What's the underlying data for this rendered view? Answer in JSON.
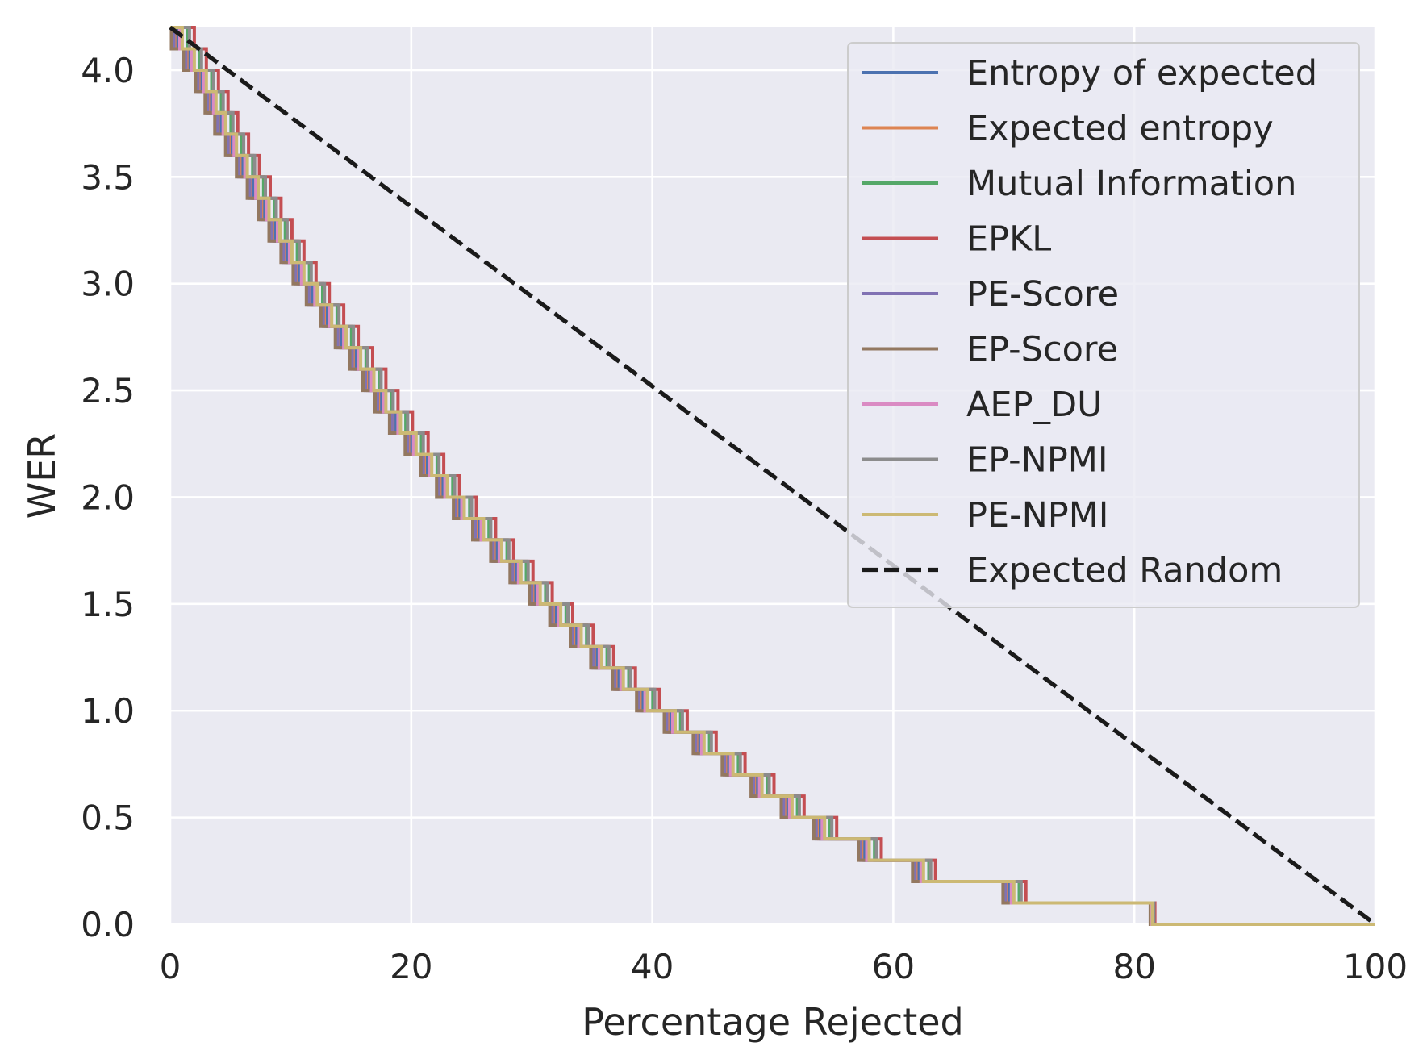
{
  "chart_data": {
    "type": "line",
    "title": "",
    "xlabel": "Percentage Rejected",
    "ylabel": "WER",
    "xlim": [
      0,
      100
    ],
    "ylim": [
      0,
      4.2
    ],
    "xticks": [
      "0",
      "20",
      "40",
      "60",
      "80",
      "100"
    ],
    "yticks": [
      "0.0",
      "0.5",
      "1.0",
      "1.5",
      "2.0",
      "2.5",
      "3.0",
      "3.5",
      "4.0"
    ],
    "grid": true,
    "legend_position": "top-right",
    "series": [
      {
        "name": "Entropy of expected",
        "color": "#4c72b0",
        "style": "step",
        "offset": -0.35
      },
      {
        "name": "Expected entropy",
        "color": "#dd8452",
        "style": "step",
        "offset": -0.5
      },
      {
        "name": "Mutual Information",
        "color": "#55a868",
        "style": "step",
        "offset": 0.45
      },
      {
        "name": "EPKL",
        "color": "#c44e52",
        "style": "step",
        "offset": 1.0
      },
      {
        "name": "PE-Score",
        "color": "#8172b3",
        "style": "step",
        "offset": -0.7
      },
      {
        "name": "EP-Score",
        "color": "#937860",
        "style": "step",
        "offset": -0.9
      },
      {
        "name": "AEP_DU",
        "color": "#da8bc3",
        "style": "step",
        "offset": -0.2
      },
      {
        "name": "EP-NPMI",
        "color": "#8c8c8c",
        "style": "step",
        "offset": 0.6
      },
      {
        "name": "PE-NPMI",
        "color": "#ccb974",
        "style": "step",
        "offset": 0.0
      },
      {
        "name": "Expected Random",
        "color": "#1a1a1a",
        "style": "dashed",
        "x": [
          0,
          100
        ],
        "y": [
          4.2,
          0
        ]
      }
    ],
    "base_curve": {
      "x": [
        0,
        81.5
      ],
      "y": [
        4.2,
        0.0
      ],
      "wer_steps": [
        4.1,
        4.0,
        3.9,
        3.8,
        3.7,
        3.6,
        3.5,
        3.4,
        3.3,
        3.2,
        3.1,
        3.0,
        2.9,
        2.8,
        2.7,
        2.6,
        2.5,
        2.4,
        2.3,
        2.2,
        2.1,
        2.0,
        1.9,
        1.8,
        1.7,
        1.6,
        1.5,
        1.4,
        1.3,
        1.2,
        1.1,
        1.0,
        0.9,
        0.8,
        0.7,
        0.6,
        0.5,
        0.4,
        0.3,
        0.2,
        0.1,
        0.0
      ],
      "step_x": [
        1.0,
        2.0,
        3.0,
        3.8,
        4.6,
        5.5,
        6.4,
        7.3,
        8.2,
        9.1,
        10.1,
        11.1,
        12.2,
        13.4,
        14.6,
        15.8,
        16.9,
        17.9,
        19.1,
        20.4,
        21.7,
        23.0,
        24.4,
        26.0,
        27.5,
        29.1,
        30.7,
        32.4,
        34.1,
        35.8,
        37.6,
        39.6,
        41.9,
        44.3,
        46.7,
        49.1,
        51.6,
        54.3,
        58.0,
        62.5,
        70.0,
        81.5
      ]
    },
    "tail": {
      "x": [
        81.5,
        100
      ],
      "y": [
        0.0,
        0.0
      ]
    }
  }
}
